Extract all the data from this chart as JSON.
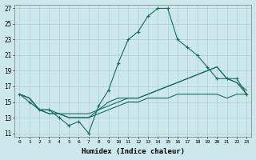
{
  "title": "",
  "xlabel": "Humidex (Indice chaleur)",
  "xlim": [
    -0.5,
    23.5
  ],
  "ylim": [
    10.5,
    27.5
  ],
  "xticks": [
    0,
    1,
    2,
    3,
    4,
    5,
    6,
    7,
    8,
    9,
    10,
    11,
    12,
    13,
    14,
    15,
    16,
    17,
    18,
    19,
    20,
    21,
    22,
    23
  ],
  "yticks": [
    11,
    13,
    15,
    17,
    19,
    21,
    23,
    25,
    27
  ],
  "bg_color": "#cce8ec",
  "grid_color": "#aacdd4",
  "line_color": "#1a6b5e",
  "series": [
    {
      "x": [
        0,
        1,
        2,
        3,
        4,
        5,
        6,
        7,
        8,
        9,
        10,
        11,
        12,
        13,
        14,
        15,
        16,
        17,
        18,
        19,
        20,
        21,
        22,
        23
      ],
      "y": [
        16.0,
        15.0,
        14.0,
        14.0,
        13.0,
        12.0,
        12.5,
        11.0,
        14.5,
        16.5,
        20.0,
        23.0,
        24.0,
        26.0,
        27.0,
        27.0,
        23.0,
        22.0,
        21.0,
        19.5,
        18.0,
        18.0,
        18.0,
        16.0
      ],
      "marker": "+"
    },
    {
      "x": [
        0,
        1,
        2,
        3,
        4,
        5,
        6,
        7,
        8,
        9,
        10,
        11,
        12,
        13,
        14,
        15,
        16,
        17,
        18,
        19,
        20,
        21,
        22,
        23
      ],
      "y": [
        16.0,
        15.5,
        14.0,
        14.0,
        13.5,
        13.0,
        13.0,
        13.0,
        14.0,
        15.0,
        15.5,
        15.5,
        15.5,
        16.0,
        16.5,
        17.0,
        17.5,
        18.0,
        18.5,
        19.0,
        19.5,
        18.0,
        17.5,
        16.0
      ],
      "marker": null
    },
    {
      "x": [
        0,
        1,
        2,
        3,
        4,
        5,
        6,
        7,
        8,
        9,
        10,
        11,
        12,
        13,
        14,
        15,
        16,
        17,
        18,
        19,
        20,
        21,
        22,
        23
      ],
      "y": [
        16.0,
        15.5,
        14.0,
        13.5,
        13.5,
        13.5,
        13.5,
        13.5,
        14.0,
        14.5,
        15.0,
        15.5,
        15.5,
        16.0,
        16.5,
        17.0,
        17.5,
        18.0,
        18.5,
        19.0,
        19.5,
        18.0,
        17.5,
        16.5
      ],
      "marker": null
    },
    {
      "x": [
        0,
        1,
        2,
        3,
        4,
        5,
        6,
        7,
        8,
        9,
        10,
        11,
        12,
        13,
        14,
        15,
        16,
        17,
        18,
        19,
        20,
        21,
        22,
        23
      ],
      "y": [
        16.0,
        15.5,
        14.0,
        13.5,
        13.5,
        13.0,
        13.0,
        13.0,
        13.5,
        14.0,
        14.5,
        15.0,
        15.0,
        15.5,
        15.5,
        15.5,
        16.0,
        16.0,
        16.0,
        16.0,
        16.0,
        15.5,
        16.0,
        16.0
      ],
      "marker": null
    }
  ]
}
